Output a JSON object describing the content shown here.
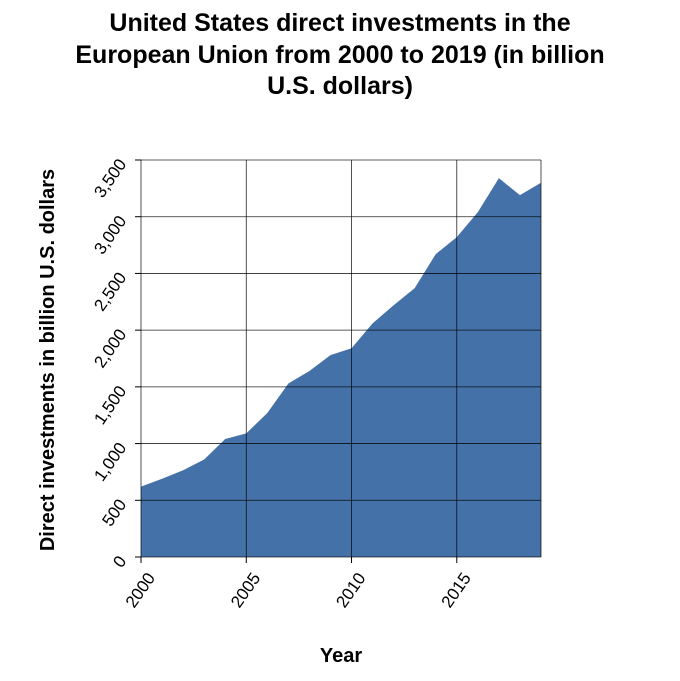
{
  "chart_data": {
    "type": "area",
    "title": "United States direct investments in the European Union from 2000 to 2019 (in billion U.S. dollars)",
    "title_lines": [
      "United States direct investments in the",
      "European Union from 2000 to 2019 (in billion",
      "U.S. dollars)"
    ],
    "xlabel": "Year",
    "ylabel": "Direct investments in billion U.S. dollars",
    "xlim": [
      2000,
      2019
    ],
    "ylim": [
      0,
      3500
    ],
    "x_ticks": [
      2000,
      2005,
      2010,
      2015
    ],
    "x_tick_labels": [
      "2000",
      "2005",
      "2010",
      "2015"
    ],
    "y_ticks": [
      0,
      500,
      1000,
      1500,
      2000,
      2500,
      3000,
      3500
    ],
    "y_tick_labels": [
      "0",
      "500",
      "1,000",
      "1,500",
      "2,000",
      "2,500",
      "3,000",
      "3,500"
    ],
    "grid": true,
    "legend": "none",
    "fill_color": "#4472a8",
    "x": [
      2000,
      2001,
      2002,
      2003,
      2004,
      2005,
      2006,
      2007,
      2008,
      2009,
      2010,
      2011,
      2012,
      2013,
      2014,
      2015,
      2016,
      2017,
      2018,
      2019
    ],
    "values": [
      620,
      690,
      765,
      860,
      1040,
      1090,
      1270,
      1530,
      1640,
      1780,
      1840,
      2060,
      2220,
      2370,
      2670,
      2820,
      3040,
      3340,
      3190,
      3300
    ]
  }
}
